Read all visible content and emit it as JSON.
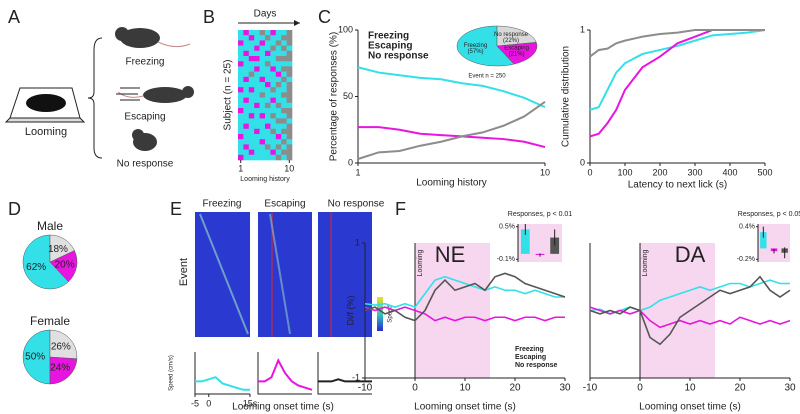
{
  "figure": {
    "panels": [
      "A",
      "B",
      "C",
      "D",
      "E",
      "F"
    ],
    "looming": "Looming",
    "outcomes": [
      "Freezing",
      "Escaping",
      "No response"
    ],
    "event": "Event",
    "speed": "Speed",
    "e_xlabel": "Looming onset time (s)"
  },
  "chart_data": [
    {
      "type": "matrix",
      "title": "Days",
      "ylabel": "Subject (n = 25)",
      "xlabel": "Looming history",
      "xlim": [
        1,
        10
      ],
      "xticks": [
        1,
        10
      ],
      "colors": [
        "#33e0e8",
        "#e815e0",
        "#8c8c8c"
      ],
      "rows": [
        [
          0,
          1,
          0,
          0,
          2,
          0,
          1,
          0,
          0,
          2
        ],
        [
          0,
          0,
          1,
          0,
          0,
          2,
          0,
          0,
          2,
          2
        ],
        [
          1,
          0,
          0,
          0,
          1,
          0,
          0,
          2,
          0,
          2
        ],
        [
          0,
          0,
          0,
          1,
          0,
          0,
          2,
          0,
          2,
          0
        ],
        [
          0,
          1,
          0,
          0,
          0,
          1,
          0,
          0,
          0,
          2
        ],
        [
          0,
          0,
          1,
          1,
          0,
          0,
          0,
          2,
          2,
          2
        ],
        [
          1,
          0,
          0,
          0,
          0,
          2,
          0,
          0,
          0,
          0
        ],
        [
          0,
          0,
          0,
          1,
          0,
          0,
          1,
          0,
          2,
          2
        ],
        [
          0,
          0,
          2,
          0,
          0,
          0,
          0,
          1,
          0,
          2
        ],
        [
          0,
          1,
          0,
          0,
          1,
          0,
          0,
          0,
          2,
          0
        ],
        [
          0,
          0,
          0,
          0,
          0,
          1,
          0,
          2,
          0,
          2
        ],
        [
          1,
          0,
          1,
          0,
          0,
          0,
          2,
          0,
          0,
          2
        ],
        [
          0,
          0,
          0,
          0,
          2,
          0,
          0,
          0,
          2,
          2
        ],
        [
          0,
          1,
          0,
          0,
          0,
          0,
          1,
          0,
          0,
          2
        ],
        [
          0,
          0,
          0,
          1,
          0,
          2,
          0,
          2,
          0,
          0
        ],
        [
          1,
          0,
          0,
          0,
          0,
          0,
          0,
          0,
          2,
          2
        ],
        [
          0,
          0,
          1,
          0,
          1,
          0,
          2,
          0,
          0,
          2
        ],
        [
          0,
          0,
          0,
          0,
          0,
          0,
          0,
          2,
          2,
          0
        ],
        [
          0,
          1,
          0,
          0,
          0,
          1,
          0,
          0,
          0,
          2
        ],
        [
          0,
          0,
          0,
          1,
          0,
          0,
          2,
          0,
          2,
          2
        ],
        [
          1,
          0,
          0,
          0,
          0,
          0,
          0,
          1,
          0,
          2
        ],
        [
          0,
          0,
          0,
          0,
          1,
          0,
          0,
          0,
          2,
          0
        ],
        [
          0,
          1,
          0,
          0,
          0,
          2,
          0,
          2,
          0,
          2
        ],
        [
          0,
          0,
          1,
          0,
          0,
          0,
          1,
          0,
          2,
          2
        ],
        [
          1,
          0,
          0,
          0,
          0,
          0,
          0,
          2,
          0,
          2
        ]
      ]
    },
    {
      "type": "line",
      "ylabel": "Percentage of responses (%)",
      "xlabel": "Looming history",
      "x": [
        1,
        2,
        3,
        4,
        5,
        6,
        7,
        8,
        9,
        10
      ],
      "xlim": [
        1,
        10
      ],
      "xticks": [
        1,
        10
      ],
      "ylim": [
        0,
        100
      ],
      "yticks": [
        0,
        50,
        100
      ],
      "series": [
        {
          "name": "Freezing",
          "color": "#33e0e8",
          "values": [
            72,
            68,
            66,
            64,
            63,
            60,
            58,
            54,
            49,
            42
          ]
        },
        {
          "name": "Escaping",
          "color": "#e815e0",
          "values": [
            27,
            27,
            25,
            22,
            21,
            20,
            19,
            18,
            16,
            12
          ]
        },
        {
          "name": "No response",
          "color": "#8c8c8c",
          "values": [
            3,
            8,
            9,
            13,
            16,
            20,
            23,
            28,
            35,
            46
          ]
        }
      ]
    },
    {
      "type": "pie",
      "categories": [
        "Freezing",
        "Escaping",
        "No response"
      ],
      "values": [
        57,
        21,
        22
      ],
      "value_labels": [
        "(57%)",
        "(21%)",
        "(22%)"
      ],
      "colors": [
        "#33e0e8",
        "#e815e0",
        "#d9d9d9"
      ],
      "annotation": "Event n = 250"
    },
    {
      "type": "line",
      "ylabel": "Cumulative distribution",
      "xlabel": "Latency to next lick (s)",
      "x": [
        0,
        25,
        50,
        75,
        100,
        150,
        200,
        250,
        300,
        350,
        400,
        450,
        500
      ],
      "xlim": [
        0,
        500
      ],
      "xticks": [
        0,
        100,
        200,
        300,
        400,
        500
      ],
      "ylim": [
        0,
        1
      ],
      "yticks": [
        0,
        1
      ],
      "series": [
        {
          "name": "Freezing",
          "color": "#33e0e8",
          "values": [
            0.4,
            0.42,
            0.55,
            0.68,
            0.75,
            0.82,
            0.85,
            0.88,
            0.92,
            0.96,
            0.97,
            0.98,
            1
          ]
        },
        {
          "name": "Escaping",
          "color": "#e815e0",
          "values": [
            0.2,
            0.22,
            0.3,
            0.4,
            0.55,
            0.72,
            0.8,
            0.9,
            0.95,
            1,
            1,
            1,
            1
          ]
        },
        {
          "name": "No response",
          "color": "#8c8c8c",
          "values": [
            0.8,
            0.85,
            0.86,
            0.9,
            0.92,
            0.95,
            0.97,
            0.98,
            1,
            1,
            1,
            1,
            1
          ]
        }
      ]
    },
    {
      "type": "pie",
      "title": "Male",
      "categories": [
        "Freezing",
        "Escaping",
        "No response"
      ],
      "values": [
        62,
        20,
        18
      ],
      "value_labels": [
        "62%",
        "20%",
        "18%"
      ],
      "colors": [
        "#33e0e8",
        "#e815e0",
        "#e0e0e0"
      ]
    },
    {
      "type": "pie",
      "title": "Female",
      "categories": [
        "Freezing",
        "Escaping",
        "No response"
      ],
      "values": [
        50,
        24,
        26
      ],
      "value_labels": [
        "50%",
        "24%",
        "26%"
      ],
      "colors": [
        "#33e0e8",
        "#e815e0",
        "#e0e0e0"
      ]
    },
    {
      "type": "line",
      "title": "Freezing",
      "ylabel": "Speed (cm/s)",
      "x": [
        -5,
        -2.5,
        0,
        2.5,
        5,
        7.5,
        10,
        12.5,
        15
      ],
      "xlim": [
        -5,
        15
      ],
      "xticks": [
        -5,
        0,
        {
          "value": 15,
          "label": "15s"
        }
      ],
      "ylim": [
        0,
        10
      ],
      "series": [
        {
          "color": "#33e0e8",
          "values": [
            3,
            3,
            3.5,
            4,
            2.5,
            2,
            1.5,
            1,
            1
          ]
        }
      ]
    },
    {
      "type": "line",
      "title": "Escaping",
      "x": [
        -5,
        -2.5,
        0,
        2.5,
        5,
        7.5,
        10,
        12.5,
        15
      ],
      "xlim": [
        -5,
        15
      ],
      "ylim": [
        0,
        10
      ],
      "series": [
        {
          "color": "#e815e0",
          "values": [
            3,
            3,
            4,
            8,
            5,
            3,
            2,
            1.5,
            1
          ]
        }
      ]
    },
    {
      "type": "line",
      "title": "No response",
      "x": [
        -5,
        -2.5,
        0,
        2.5,
        5,
        7.5,
        10,
        12.5,
        15
      ],
      "xlim": [
        -5,
        15
      ],
      "ylim": [
        0,
        10
      ],
      "series": [
        {
          "color": "#222222",
          "values": [
            3,
            3,
            3,
            3.5,
            3,
            3,
            3,
            3,
            3
          ]
        }
      ]
    },
    {
      "type": "line",
      "title": "NE",
      "title_color": "#e0242a",
      "annotation": "Looming",
      "highlight": [
        0,
        15
      ],
      "ylabel": "Dl/f (%)",
      "xlabel": "Looming onset time (s)",
      "x": [
        -10,
        -8,
        -6,
        -4,
        -2,
        0,
        2,
        4,
        6,
        8,
        10,
        12,
        14,
        16,
        18,
        20,
        22,
        24,
        26,
        28,
        30
      ],
      "xlim": [
        -10,
        30
      ],
      "xticks": [
        -10,
        0,
        10,
        20,
        30
      ],
      "ylim": [
        -1,
        1
      ],
      "yticks": [
        -1,
        1
      ],
      "series": [
        {
          "name": "Freezing",
          "color": "#33e0e8",
          "values": [
            0.1,
            0.08,
            0.1,
            0.05,
            0.1,
            0.05,
            0.25,
            0.45,
            0.5,
            0.45,
            0.4,
            0.35,
            0.3,
            0.35,
            0.3,
            0.3,
            0.25,
            0.3,
            0.25,
            0.2,
            0.2
          ]
        },
        {
          "name": "Escaping",
          "color": "#e815e0",
          "values": [
            0.05,
            0,
            0.05,
            0,
            0.05,
            0,
            -0.05,
            -0.15,
            -0.1,
            -0.15,
            -0.1,
            -0.1,
            -0.15,
            -0.1,
            -0.1,
            -0.15,
            -0.1,
            -0.1,
            -0.15,
            -0.1,
            -0.1
          ]
        },
        {
          "name": "No response",
          "color": "#555555",
          "values": [
            0,
            0.05,
            -0.05,
            0,
            -0.1,
            -0.15,
            0,
            0.3,
            0.45,
            0.3,
            0.35,
            0.4,
            0.3,
            0.5,
            0.55,
            0.5,
            0.4,
            0.35,
            0.3,
            0.25,
            0.2
          ]
        }
      ]
    },
    {
      "type": "bar",
      "title": "Responses, p < 0.01",
      "values": [
        0.45,
        -0.02,
        0.3
      ],
      "errors": [
        0.1,
        0.03,
        0.15
      ],
      "colors": [
        "#33e0e8",
        "#e815e0",
        "#555555"
      ],
      "ylim": [
        -0.15,
        0.55
      ],
      "yticks": [
        {
          "value": 0.5,
          "label": "0.5%"
        },
        {
          "value": -0.1,
          "label": "-0.1%"
        }
      ]
    },
    {
      "type": "line",
      "title": "DA",
      "title_color": "#3ad63a",
      "annotation": "Looming",
      "highlight": [
        0,
        15
      ],
      "xlabel": "Looming onset time (s)",
      "x": [
        -10,
        -8,
        -6,
        -4,
        -2,
        0,
        2,
        4,
        6,
        8,
        10,
        12,
        14,
        16,
        18,
        20,
        22,
        24,
        26,
        28,
        30
      ],
      "xlim": [
        -10,
        30
      ],
      "xticks": [
        -10,
        0,
        10,
        20,
        30
      ],
      "ylim": [
        -1,
        1
      ],
      "series": [
        {
          "color": "#33e0e8",
          "values": [
            0,
            0.02,
            -0.05,
            0,
            0.05,
            0,
            0.05,
            0.15,
            0.2,
            0.25,
            0.3,
            0.35,
            0.3,
            0.35,
            0.4,
            0.4,
            0.35,
            0.4,
            0.45,
            0.4,
            0.4
          ]
        },
        {
          "color": "#e815e0",
          "values": [
            0.05,
            0,
            -0.05,
            0,
            -0.05,
            0,
            -0.15,
            -0.25,
            -0.2,
            -0.15,
            -0.2,
            -0.15,
            -0.2,
            -0.15,
            -0.2,
            -0.1,
            -0.15,
            -0.2,
            -0.15,
            -0.2,
            -0.15
          ]
        },
        {
          "color": "#555555",
          "values": [
            0,
            -0.05,
            0,
            -0.05,
            0.05,
            0,
            -0.4,
            -0.5,
            -0.35,
            -0.1,
            0,
            0.1,
            0.2,
            0.3,
            0.25,
            0.3,
            0.35,
            0.5,
            0.3,
            0.2,
            0.3
          ]
        }
      ]
    },
    {
      "type": "bar",
      "title": "Responses, p < 0.05",
      "values": [
        0.3,
        -0.05,
        -0.08
      ],
      "errors": [
        0.1,
        0.04,
        0.1
      ],
      "colors": [
        "#33e0e8",
        "#e815e0",
        "#555555"
      ],
      "ylim": [
        -0.25,
        0.45
      ],
      "yticks": [
        {
          "value": 0.4,
          "label": "0.4%"
        },
        {
          "value": -0.2,
          "label": "-0.2%"
        }
      ]
    }
  ]
}
